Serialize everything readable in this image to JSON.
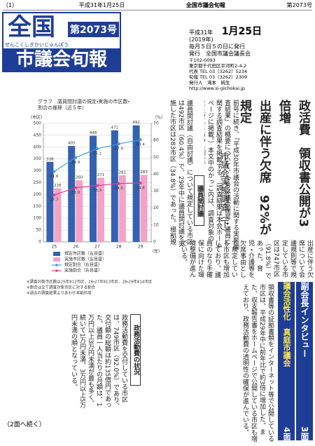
{
  "header": {
    "page": "（1）",
    "date": "平成31年1月25日",
    "paper": "全国市議会旬報",
    "issue": "第2073号"
  },
  "masthead": {
    "logo_top": "全国",
    "logo_issue": "第2073号",
    "logo_bottom": "市議会旬報",
    "reading": "ぜんこくしぎかいじゅんぽう"
  },
  "info": {
    "era": "平成31年",
    "western": "(2019年)",
    "day": "1月25日",
    "schedule": "毎月５日５の日に発行",
    "publisher": "発行　全国市議会議長会",
    "lines": [
      "〒102-0093",
      "東京都千代田区平河町2-4-2",
      "代表 TEL 03（3262）5234",
      "旬報 TEL 03（3262）2309",
      "発行人　滝本　純生",
      "http://www.si-gichokai.jp"
    ]
  },
  "headline": {
    "lines": [
      "政活費　領収書公開が3倍増",
      "出産に伴う欠席　92%が規定"
    ],
    "sub": "市議会実態調査（下）"
  },
  "articles": {
    "intro": "前号に続き、「平成30年市議会の活動に関する実態調査結果」の概要について、今号は議会運営・議員に関する調査結果を掲載する。（調査結果は本会ホームページに掲載。）本文中のかっこ内は、調査対象の814市区に占める割合。",
    "debate_head": "議員間討議",
    "debate": "議員間討議（自由討議）について規定している市区は492市区（60.4%）で、29年中に議員間討議を実施した市区は283市区（34.8%）であった。根拠規定は、議会基本条例が最も多く、会議規則、申し合わせ等の順となっている。",
    "middle": "出産に伴う欠席について会議規則等で規定している市区は747市区（91.8%）であった。育児・介護等を欠席事由として規定している市区も増加しており、議員のなり手確保に向けた環境整備が進んでいる。",
    "left": "政務活動費を交付している市区は、749市区（92.0%）であり、交付額の総額は約135億円であった。議員一人当たりの月額は、1万円以上3万円未満が最も多く、続いて1万円未満、3万円以上5万円未満の順となっている。",
    "activity_head": "政務活動費の状況",
    "right": "領収書等の証拠書類をインターネット等で公開している市区は、平成29年中に前年比で約3倍に増加した。また、収支報告書をホームページで公開している市区も増えており、政務活動費の透明性の確保が進んでいる。",
    "continued": "（2面へ続く）"
  },
  "sidebar": [
    {
      "title": "副会長インタビュー",
      "page": "3面"
    },
    {
      "title": "議会活性化　真庭市議会",
      "page": "4面"
    }
  ],
  "chart": {
    "type": "bar",
    "title_lines": [
      "グラフ　議員間討議の規定・実施の市区数・",
      "割合の推移（近５年）"
    ],
    "y_label": "（市区）",
    "y2_label": "（％）",
    "x_label": "（年）",
    "categories": [
      "25",
      "26",
      "27",
      "28",
      "29"
    ],
    "series": [
      {
        "name": "規定市区数（左目盛）",
        "color": "#3461b0",
        "type": "bar",
        "axis": "y",
        "values": [
          338,
          405,
          448,
          471,
          492
        ]
      },
      {
        "name": "実施市区数（左目盛）",
        "color": "#f3a3c6",
        "type": "bar",
        "axis": "y",
        "values": [
          226,
          260,
          271,
          281,
          283
        ]
      },
      {
        "name": "規定割合（右目盛）",
        "color": "#3ea0dc",
        "type": "line",
        "axis": "y2",
        "values": [
          41.6,
          49.9,
          55.1,
          57.9,
          60.4
        ]
      },
      {
        "name": "実施割合（右目盛）",
        "color": "#e0409a",
        "type": "line",
        "axis": "y2",
        "values": [
          27.7,
          32.0,
          33.3,
          34.5,
          34.8
        ],
        "value_labels": [
          "27.7",
          "32.0",
          "33.3",
          "34.5",
          "34.8"
        ]
      }
    ],
    "ylim": [
      0,
      500
    ],
    "yticks": [
      0,
      50,
      100,
      150,
      200,
      250,
      300,
      350,
      400,
      450,
      500
    ],
    "y2lim": [
      0,
      70
    ],
    "y2ticks": [
      0,
      10,
      20,
      30,
      40,
      50,
      60,
      70
    ],
    "grid": true,
    "notes": [
      "※調査対象市区数は25年812市区、26・27年813市区、28・29年814市区",
      "※割合は全て調査対象市区に対する割合",
      "※過去の調査結果よりあわせ本紙作成"
    ]
  }
}
